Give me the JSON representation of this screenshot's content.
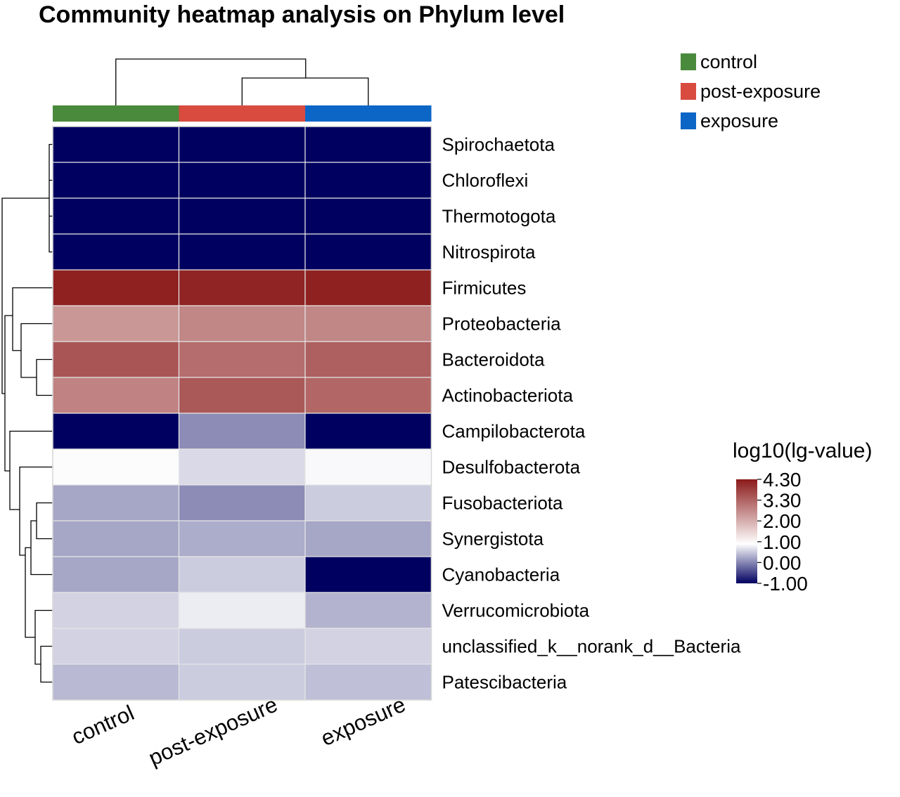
{
  "chart_data": {
    "type": "heatmap",
    "title": "Community heatmap analysis on Phylum level",
    "columns": [
      "control",
      "post-exposure",
      "exposure"
    ],
    "rows": [
      "Spirochaetota",
      "Chloroflexi",
      "Thermotogota",
      "Nitrospirota",
      "Firmicutes",
      "Proteobacteria",
      "Bacteroidota",
      "Actinobacteriota",
      "Campilobacterota",
      "Desulfobacterota",
      "Fusobacteriota",
      "Synergistota",
      "Cyanobacteria",
      "Verrucomicrobiota",
      "unclassified_k__norank_d__Bacteria",
      "Patescibacteria"
    ],
    "values": [
      [
        -1.0,
        -1.0,
        -1.0
      ],
      [
        -1.0,
        -1.0,
        -1.0
      ],
      [
        -1.0,
        -1.0,
        -1.0
      ],
      [
        -1.0,
        -1.0,
        -1.0
      ],
      [
        4.2,
        4.15,
        4.2
      ],
      [
        2.5,
        2.75,
        2.75
      ],
      [
        3.45,
        3.1,
        3.3
      ],
      [
        2.8,
        3.4,
        3.2
      ],
      [
        -1.0,
        0.1,
        -1.0
      ],
      [
        1.05,
        0.7,
        0.95
      ],
      [
        0.3,
        0.1,
        0.6
      ],
      [
        0.3,
        0.35,
        0.3
      ],
      [
        0.3,
        0.6,
        -1.0
      ],
      [
        0.65,
        0.85,
        0.4
      ],
      [
        0.65,
        0.6,
        0.65
      ],
      [
        0.45,
        0.6,
        0.5
      ]
    ],
    "group_legend": [
      {
        "name": "control",
        "color": "#4a8a3c"
      },
      {
        "name": "post-exposure",
        "color": "#d84b3e"
      },
      {
        "name": "exposure",
        "color": "#0c66c6"
      }
    ],
    "colorbar": {
      "title": "log10(lg-value)",
      "ticks": [
        "4.30",
        "3.30",
        "2.00",
        "1.00",
        "0.00",
        "-1.00"
      ],
      "min": -1.0,
      "max": 4.3,
      "colors": [
        "#000060",
        "#ffffff",
        "#8b1a1a"
      ]
    },
    "legend_position": "top-right"
  }
}
